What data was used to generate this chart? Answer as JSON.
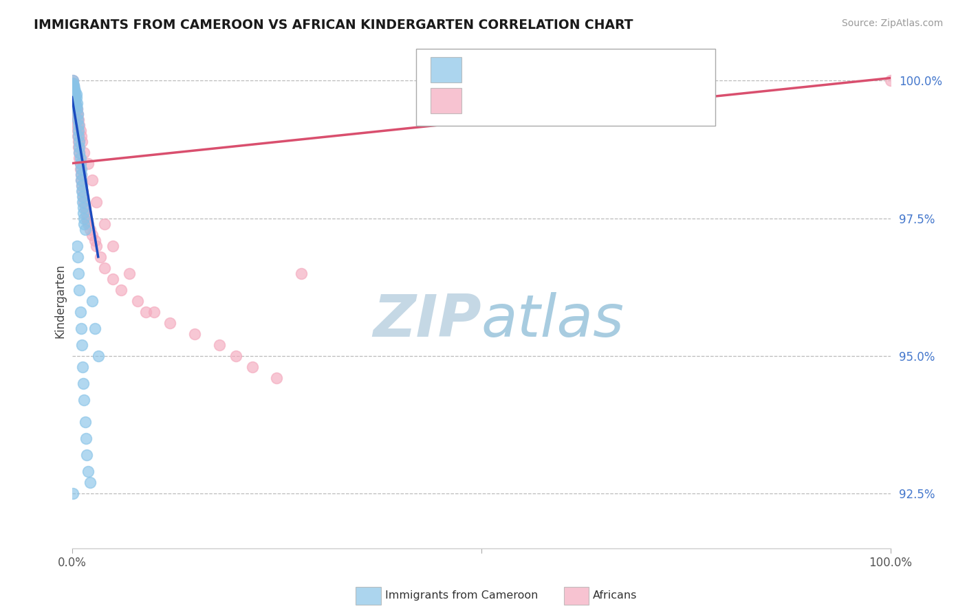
{
  "title": "IMMIGRANTS FROM CAMEROON VS AFRICAN KINDERGARTEN CORRELATION CHART",
  "source": "Source: ZipAtlas.com",
  "ylabel": "Kindergarten",
  "yticks": [
    92.5,
    95.0,
    97.5,
    100.0
  ],
  "ytick_labels": [
    "92.5%",
    "95.0%",
    "97.5%",
    "100.0%"
  ],
  "blue_color": "#89C4E8",
  "pink_color": "#F4AABE",
  "blue_line_color": "#1A4BBF",
  "pink_line_color": "#D94F6E",
  "watermark_zip_color": "#C8D8E8",
  "watermark_atlas_color": "#A8C8E0",
  "blue_scatter_x": [
    0.001,
    0.002,
    0.003,
    0.004,
    0.005,
    0.005,
    0.006,
    0.006,
    0.007,
    0.007,
    0.008,
    0.008,
    0.008,
    0.009,
    0.009,
    0.009,
    0.01,
    0.01,
    0.011,
    0.011,
    0.011,
    0.012,
    0.012,
    0.013,
    0.013,
    0.014,
    0.014,
    0.015,
    0.015,
    0.016,
    0.001,
    0.001,
    0.002,
    0.002,
    0.003,
    0.003,
    0.004,
    0.004,
    0.005,
    0.006,
    0.007,
    0.008,
    0.009,
    0.01,
    0.011,
    0.012,
    0.013,
    0.014,
    0.015,
    0.016,
    0.017,
    0.018,
    0.02,
    0.022,
    0.025,
    0.028,
    0.032,
    0.001,
    0.001
  ],
  "blue_scatter_y": [
    100.0,
    99.9,
    99.85,
    99.8,
    99.75,
    99.7,
    99.6,
    99.5,
    99.4,
    99.3,
    99.2,
    99.1,
    99.0,
    98.9,
    98.8,
    98.7,
    98.6,
    98.5,
    98.4,
    98.3,
    98.2,
    98.1,
    98.0,
    97.9,
    97.8,
    97.7,
    97.6,
    97.5,
    97.4,
    97.3,
    99.95,
    99.88,
    99.92,
    99.82,
    99.78,
    99.72,
    99.68,
    99.62,
    99.55,
    97.0,
    96.8,
    96.5,
    96.2,
    95.8,
    95.5,
    95.2,
    94.8,
    94.5,
    94.2,
    93.8,
    93.5,
    93.2,
    92.9,
    92.7,
    96.0,
    95.5,
    95.0,
    99.6,
    92.5
  ],
  "pink_scatter_x": [
    0.001,
    0.001,
    0.002,
    0.002,
    0.003,
    0.003,
    0.004,
    0.004,
    0.005,
    0.005,
    0.006,
    0.006,
    0.007,
    0.007,
    0.008,
    0.008,
    0.009,
    0.009,
    0.01,
    0.01,
    0.011,
    0.011,
    0.012,
    0.013,
    0.014,
    0.015,
    0.016,
    0.017,
    0.018,
    0.019,
    0.02,
    0.022,
    0.025,
    0.028,
    0.03,
    0.035,
    0.04,
    0.05,
    0.06,
    0.08,
    0.1,
    0.12,
    0.15,
    0.18,
    0.2,
    0.22,
    0.25,
    0.001,
    0.001,
    0.002,
    0.002,
    0.003,
    0.003,
    0.004,
    0.005,
    0.006,
    0.007,
    0.008,
    0.009,
    0.01,
    0.011,
    0.012,
    0.015,
    0.02,
    0.025,
    0.03,
    0.04,
    0.05,
    0.07,
    0.09,
    0.28,
    0.001,
    0.001,
    0.002,
    1.0
  ],
  "pink_scatter_y": [
    100.0,
    99.9,
    99.85,
    99.8,
    99.75,
    99.7,
    99.65,
    99.6,
    99.5,
    99.4,
    99.3,
    99.2,
    99.1,
    99.0,
    98.9,
    98.8,
    98.7,
    98.6,
    98.5,
    98.4,
    98.3,
    98.2,
    98.1,
    98.0,
    97.9,
    97.8,
    97.7,
    97.6,
    97.5,
    97.45,
    97.4,
    97.3,
    97.2,
    97.1,
    97.0,
    96.8,
    96.6,
    96.4,
    96.2,
    96.0,
    95.8,
    95.6,
    95.4,
    95.2,
    95.0,
    94.8,
    94.6,
    99.92,
    99.88,
    99.82,
    99.78,
    99.72,
    99.68,
    99.62,
    99.55,
    99.48,
    99.4,
    99.3,
    99.2,
    99.1,
    99.0,
    98.9,
    98.7,
    98.5,
    98.2,
    97.8,
    97.4,
    97.0,
    96.5,
    95.8,
    96.5,
    99.95,
    99.85,
    99.9,
    100.0
  ],
  "blue_line_x": [
    0.0,
    0.032
  ],
  "blue_line_y": [
    99.7,
    96.8
  ],
  "pink_line_x": [
    0.0,
    1.0
  ],
  "pink_line_y": [
    98.5,
    100.05
  ],
  "xlim": [
    0.0,
    1.0
  ],
  "ylim": [
    91.5,
    100.5
  ]
}
